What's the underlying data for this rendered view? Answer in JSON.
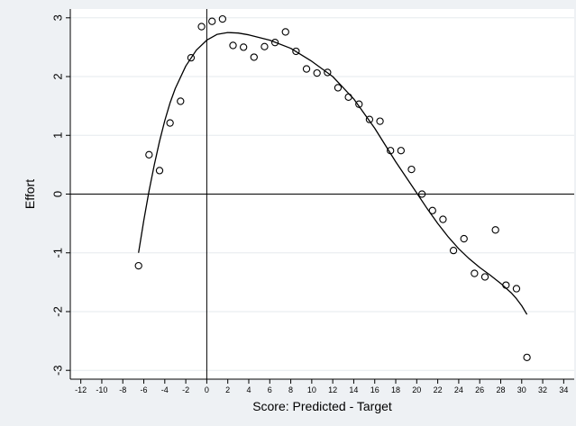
{
  "chart_data": {
    "type": "scatter",
    "title": "",
    "xlabel": "Score: Predicted - Target",
    "ylabel": "Effort",
    "xlim": [
      -13,
      35
    ],
    "ylim": [
      -3.15,
      3.15
    ],
    "xticks": [
      -12,
      -10,
      -8,
      -6,
      -4,
      -2,
      0,
      2,
      4,
      6,
      8,
      10,
      12,
      14,
      16,
      18,
      20,
      22,
      24,
      26,
      28,
      30,
      32,
      34
    ],
    "yticks": [
      3,
      2,
      1,
      0,
      -1,
      -2,
      -3
    ],
    "grid": "horizontal",
    "reference_lines": {
      "x": 0,
      "y": 0
    },
    "series": [
      {
        "type": "scatter",
        "marker": "hollow-circle",
        "points": [
          [
            -6.5,
            -1.22
          ],
          [
            -5.5,
            0.67
          ],
          [
            -4.5,
            0.4
          ],
          [
            -3.5,
            1.21
          ],
          [
            -2.5,
            1.58
          ],
          [
            -1.5,
            2.32
          ],
          [
            -0.5,
            2.85
          ],
          [
            0.5,
            2.94
          ],
          [
            1.5,
            2.98
          ],
          [
            2.5,
            2.53
          ],
          [
            3.5,
            2.5
          ],
          [
            4.5,
            2.33
          ],
          [
            5.5,
            2.51
          ],
          [
            6.5,
            2.58
          ],
          [
            7.5,
            2.76
          ],
          [
            8.5,
            2.43
          ],
          [
            9.5,
            2.13
          ],
          [
            10.5,
            2.06
          ],
          [
            11.5,
            2.07
          ],
          [
            12.5,
            1.81
          ],
          [
            13.5,
            1.65
          ],
          [
            14.5,
            1.53
          ],
          [
            15.5,
            1.27
          ],
          [
            16.5,
            1.24
          ],
          [
            17.5,
            0.74
          ],
          [
            18.5,
            0.74
          ],
          [
            19.5,
            0.42
          ],
          [
            20.5,
            0.0
          ],
          [
            21.5,
            -0.28
          ],
          [
            22.5,
            -0.43
          ],
          [
            23.5,
            -0.96
          ],
          [
            24.5,
            -0.76
          ],
          [
            25.5,
            -1.35
          ],
          [
            26.5,
            -1.41
          ],
          [
            27.5,
            -0.61
          ],
          [
            28.5,
            -1.55
          ],
          [
            29.5,
            -1.61
          ],
          [
            30.5,
            -2.78
          ]
        ]
      },
      {
        "type": "line",
        "style": "fitted-curve",
        "points": [
          [
            -6.5,
            -1.0
          ],
          [
            -6.0,
            -0.45
          ],
          [
            -5.5,
            0.05
          ],
          [
            -5.0,
            0.5
          ],
          [
            -4.5,
            0.9
          ],
          [
            -4.0,
            1.25
          ],
          [
            -3.5,
            1.55
          ],
          [
            -3.0,
            1.8
          ],
          [
            -2.0,
            2.18
          ],
          [
            -1.0,
            2.45
          ],
          [
            0.0,
            2.62
          ],
          [
            1.0,
            2.72
          ],
          [
            2.0,
            2.75
          ],
          [
            3.0,
            2.74
          ],
          [
            4.0,
            2.71
          ],
          [
            6.0,
            2.62
          ],
          [
            8.0,
            2.48
          ],
          [
            10.0,
            2.26
          ],
          [
            12.0,
            2.0
          ],
          [
            14.0,
            1.62
          ],
          [
            16.0,
            1.12
          ],
          [
            18.0,
            0.55
          ],
          [
            20.0,
            0.02
          ],
          [
            21.0,
            -0.25
          ],
          [
            22.0,
            -0.5
          ],
          [
            23.0,
            -0.73
          ],
          [
            24.0,
            -0.93
          ],
          [
            25.0,
            -1.1
          ],
          [
            26.0,
            -1.25
          ],
          [
            27.0,
            -1.38
          ],
          [
            28.0,
            -1.52
          ],
          [
            29.0,
            -1.68
          ],
          [
            29.5,
            -1.78
          ],
          [
            30.0,
            -1.9
          ],
          [
            30.5,
            -2.05
          ]
        ]
      }
    ]
  }
}
